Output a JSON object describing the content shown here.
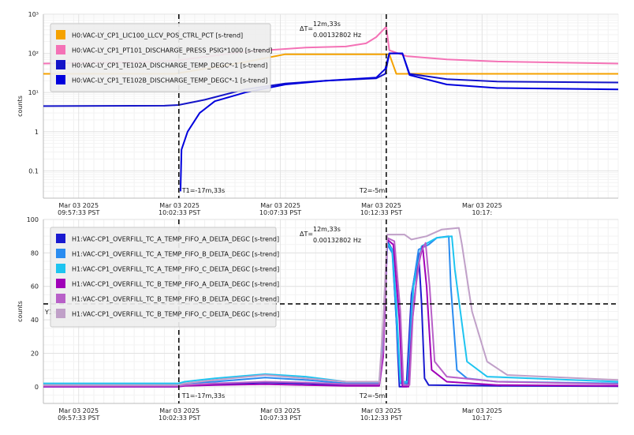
{
  "chart_data": [
    {
      "type": "line",
      "ylabel": "counts",
      "yscale": "log",
      "ylim": [
        0.02,
        1000
      ],
      "yticks": [
        {
          "v": 0.1,
          "label": "0.1"
        },
        {
          "v": 1,
          "label": "1"
        },
        {
          "v": 10,
          "label": "10¹"
        },
        {
          "v": 100,
          "label": "10²"
        },
        {
          "v": 1000,
          "label": "10³"
        }
      ],
      "xlim_min": [
        0,
        57
      ],
      "xticks": [
        {
          "v": 3.5,
          "l1": "Mar 03 2025",
          "l2": "09:57:33 PST"
        },
        {
          "v": 13.5,
          "l1": "Mar 03 2025",
          "l2": "10:02:33 PST"
        },
        {
          "v": 23.5,
          "l1": "Mar 03 2025",
          "l2": "10:07:33 PST"
        },
        {
          "v": 33.5,
          "l1": "Mar 03 2025",
          "l2": "10:12:33 PST"
        },
        {
          "v": 43.5,
          "l1": "Mar 03 2025",
          "l2": "10:17:"
        }
      ],
      "cursors": [
        {
          "x": 13.43,
          "label": "T1=-17m,33s"
        },
        {
          "x": 34.0,
          "label": "T2=-5m"
        }
      ],
      "delta": {
        "prefix": "ΔT=",
        "l1": "12m,33s",
        "l2": "0.00132802 Hz"
      },
      "legend_position": "top-left",
      "grid": true,
      "series": [
        {
          "name": "H0:VAC-LY_CP1_LIC100_LLCV_POS_CTRL_PCT [s-trend]",
          "color": "#f5a200",
          "points": [
            [
              0,
              30
            ],
            [
              13,
              30
            ],
            [
              20,
              60
            ],
            [
              24,
              95
            ],
            [
              33,
              95
            ],
            [
              34.3,
              95
            ],
            [
              35,
              30
            ],
            [
              57,
              30
            ]
          ]
        },
        {
          "name": "H0:VAC-LY_CP1_PT101_DISCHARGE_PRESS_PSIG*1000 [s-trend]",
          "color": "#f472b6",
          "points": [
            [
              0,
              55
            ],
            [
              10,
              60
            ],
            [
              13,
              65
            ],
            [
              20,
              110
            ],
            [
              26,
              140
            ],
            [
              30,
              150
            ],
            [
              32,
              180
            ],
            [
              33,
              260
            ],
            [
              34,
              480
            ],
            [
              34.3,
              120
            ],
            [
              36,
              85
            ],
            [
              40,
              70
            ],
            [
              45,
              62
            ],
            [
              57,
              55
            ]
          ]
        },
        {
          "name": "H0:VAC-LY_CP1_TE102A_DISCHARGE_TEMP_DEGC*-1 [s-trend]",
          "color": "#1414c8",
          "points": [
            [
              0,
              4.5
            ],
            [
              12,
              4.6
            ],
            [
              13.4,
              4.8
            ],
            [
              16,
              6.5
            ],
            [
              20,
              12
            ],
            [
              24,
              17
            ],
            [
              28,
              20
            ],
            [
              33,
              23
            ],
            [
              33.9,
              30
            ],
            [
              34.3,
              100
            ],
            [
              35.6,
              100
            ],
            [
              36.3,
              30
            ],
            [
              40,
              22
            ],
            [
              45,
              19
            ],
            [
              57,
              18
            ]
          ]
        },
        {
          "name": "H0:VAC-LY_CP1_TE102B_DISCHARGE_TEMP_DEGC*-1 [s-trend]",
          "color": "#0000dd",
          "points": [
            [
              13.6,
              0.03
            ],
            [
              13.7,
              0.35
            ],
            [
              14.3,
              1.0
            ],
            [
              15.5,
              3.0
            ],
            [
              17,
              6.0
            ],
            [
              20,
              10
            ],
            [
              24,
              16
            ],
            [
              28,
              20
            ],
            [
              33,
              24
            ],
            [
              33.9,
              40
            ],
            [
              34.3,
              100
            ],
            [
              35.6,
              100
            ],
            [
              36.3,
              28
            ],
            [
              40,
              16
            ],
            [
              45,
              13
            ],
            [
              57,
              12
            ]
          ]
        }
      ]
    },
    {
      "type": "line",
      "ylabel": "counts",
      "yscale": "linear",
      "ylim": [
        -10,
        100
      ],
      "yticks": [
        {
          "v": 0,
          "label": "0"
        },
        {
          "v": 20,
          "label": "20"
        },
        {
          "v": 40,
          "label": "40"
        },
        {
          "v": 60,
          "label": "60"
        },
        {
          "v": 80,
          "label": "80"
        },
        {
          "v": 100,
          "label": "100"
        }
      ],
      "xlim_min": [
        0,
        57
      ],
      "xticks": [
        {
          "v": 3.5,
          "l1": "Mar 03 2025",
          "l2": "09:57:33 PST"
        },
        {
          "v": 13.5,
          "l1": "Mar 03 2025",
          "l2": "10:02:33 PST"
        },
        {
          "v": 23.5,
          "l1": "Mar 03 2025",
          "l2": "10:07:33 PST"
        },
        {
          "v": 33.5,
          "l1": "Mar 03 2025",
          "l2": "10:12:33 PST"
        },
        {
          "v": 43.5,
          "l1": "Mar 03 2025",
          "l2": "10:17:"
        }
      ],
      "cursors": [
        {
          "x": 13.43,
          "label": "T1=-17m,33s"
        },
        {
          "x": 34.0,
          "label": "T2=-5m"
        }
      ],
      "hline": {
        "y": 49.5,
        "label": "Y1="
      },
      "delta": {
        "prefix": "ΔT=",
        "l1": "12m,33s",
        "l2": "0.00132802 Hz"
      },
      "legend_position": "top-left",
      "grid": true,
      "series": [
        {
          "name": "H1:VAC-CP1_OVERFILL_TC_A_TEMP_FIFO_A_DELTA_DEGC [s-trend]",
          "color": "#1a1ad0",
          "points": [
            [
              0,
              0
            ],
            [
              13.4,
              0
            ],
            [
              14,
              1
            ],
            [
              17,
              1.5
            ],
            [
              22,
              2.5
            ],
            [
              26,
              2
            ],
            [
              30,
              1
            ],
            [
              33.3,
              1
            ],
            [
              33.7,
              20
            ],
            [
              34.1,
              87
            ],
            [
              34.6,
              82
            ],
            [
              35,
              40
            ],
            [
              35.3,
              0
            ],
            [
              36,
              0
            ],
            [
              36.5,
              55
            ],
            [
              37.2,
              80
            ],
            [
              37.5,
              50
            ],
            [
              37.8,
              5
            ],
            [
              38.2,
              1
            ],
            [
              45,
              0.5
            ],
            [
              57,
              0.3
            ]
          ]
        },
        {
          "name": "H1:VAC-CP1_OVERFILL_TC_A_TEMP_FIFO_B_DELTA_DEGC [s-trend]",
          "color": "#2a8cf0",
          "points": [
            [
              0,
              1
            ],
            [
              13.4,
              1
            ],
            [
              14,
              2
            ],
            [
              17,
              3
            ],
            [
              22,
              5.5
            ],
            [
              26,
              4
            ],
            [
              30,
              2
            ],
            [
              33.3,
              2
            ],
            [
              33.7,
              25
            ],
            [
              34.1,
              85
            ],
            [
              34.6,
              80
            ],
            [
              35,
              40
            ],
            [
              35.4,
              2
            ],
            [
              36.1,
              2
            ],
            [
              36.6,
              58
            ],
            [
              37.2,
              82
            ],
            [
              38.2,
              85
            ],
            [
              39,
              89
            ],
            [
              40.2,
              90
            ],
            [
              40.4,
              60
            ],
            [
              41,
              10
            ],
            [
              42,
              5
            ],
            [
              45,
              3
            ],
            [
              57,
              2
            ]
          ]
        },
        {
          "name": "H1:VAC-CP1_OVERFILL_TC_A_TEMP_FIFO_C_DELTA_DEGC [s-trend]",
          "color": "#1ec4f0",
          "points": [
            [
              0,
              2
            ],
            [
              13.4,
              2
            ],
            [
              14,
              3
            ],
            [
              17,
              5
            ],
            [
              22,
              7.5
            ],
            [
              26,
              6
            ],
            [
              30,
              3
            ],
            [
              33.3,
              3
            ],
            [
              33.7,
              30
            ],
            [
              34.1,
              86
            ],
            [
              34.6,
              82
            ],
            [
              35,
              50
            ],
            [
              35.4,
              3
            ],
            [
              36.2,
              3
            ],
            [
              36.7,
              60
            ],
            [
              37.5,
              84
            ],
            [
              39,
              89
            ],
            [
              40.5,
              90
            ],
            [
              40.8,
              70
            ],
            [
              42,
              15
            ],
            [
              44,
              6
            ],
            [
              57,
              3
            ]
          ]
        },
        {
          "name": "H1:VAC-CP1_OVERFILL_TC_B_TEMP_FIFO_A_DELTA_DEGC [s-trend]",
          "color": "#a000b8",
          "points": [
            [
              0,
              0
            ],
            [
              13.4,
              0
            ],
            [
              14,
              0.5
            ],
            [
              17,
              1
            ],
            [
              22,
              1.5
            ],
            [
              26,
              1
            ],
            [
              30,
              0.5
            ],
            [
              33.3,
              0.5
            ],
            [
              33.7,
              18
            ],
            [
              34.1,
              88
            ],
            [
              34.7,
              85
            ],
            [
              35.3,
              40
            ],
            [
              35.6,
              0
            ],
            [
              36.2,
              0
            ],
            [
              36.6,
              40
            ],
            [
              37.1,
              70
            ],
            [
              37.6,
              84
            ],
            [
              38,
              60
            ],
            [
              38.5,
              10
            ],
            [
              40,
              3
            ],
            [
              45,
              1
            ],
            [
              57,
              0.5
            ]
          ]
        },
        {
          "name": "H1:VAC-CP1_OVERFILL_TC_B_TEMP_FIFO_B_DELTA_DEGC [s-trend]",
          "color": "#b860c8",
          "points": [
            [
              0,
              0.5
            ],
            [
              13.4,
              0.5
            ],
            [
              14,
              1
            ],
            [
              17,
              2
            ],
            [
              22,
              3
            ],
            [
              26,
              2.5
            ],
            [
              30,
              1.5
            ],
            [
              33.3,
              1.5
            ],
            [
              33.7,
              22
            ],
            [
              34.1,
              89
            ],
            [
              34.8,
              87
            ],
            [
              35.4,
              45
            ],
            [
              35.7,
              1
            ],
            [
              36.3,
              1
            ],
            [
              36.7,
              50
            ],
            [
              37.4,
              80
            ],
            [
              37.9,
              86
            ],
            [
              38.3,
              60
            ],
            [
              38.8,
              15
            ],
            [
              40,
              6
            ],
            [
              45,
              3
            ],
            [
              57,
              1.5
            ]
          ]
        },
        {
          "name": "H1:VAC-CP1_OVERFILL_TC_B_TEMP_FIFO_C_DELTA_DEGC [s-trend]",
          "color": "#c0a0c8",
          "points": [
            [
              0,
              1
            ],
            [
              13.4,
              1
            ],
            [
              14,
              2
            ],
            [
              17,
              4
            ],
            [
              22,
              7
            ],
            [
              26,
              5
            ],
            [
              30,
              3
            ],
            [
              33.3,
              3
            ],
            [
              33.7,
              40
            ],
            [
              34.1,
              91
            ],
            [
              35,
              91
            ],
            [
              35.8,
              91
            ],
            [
              36.5,
              88
            ],
            [
              38,
              90
            ],
            [
              39.5,
              94
            ],
            [
              41.2,
              95
            ],
            [
              41.5,
              85
            ],
            [
              42.5,
              45
            ],
            [
              44,
              15
            ],
            [
              46,
              7
            ],
            [
              57,
              4
            ]
          ]
        }
      ]
    }
  ]
}
